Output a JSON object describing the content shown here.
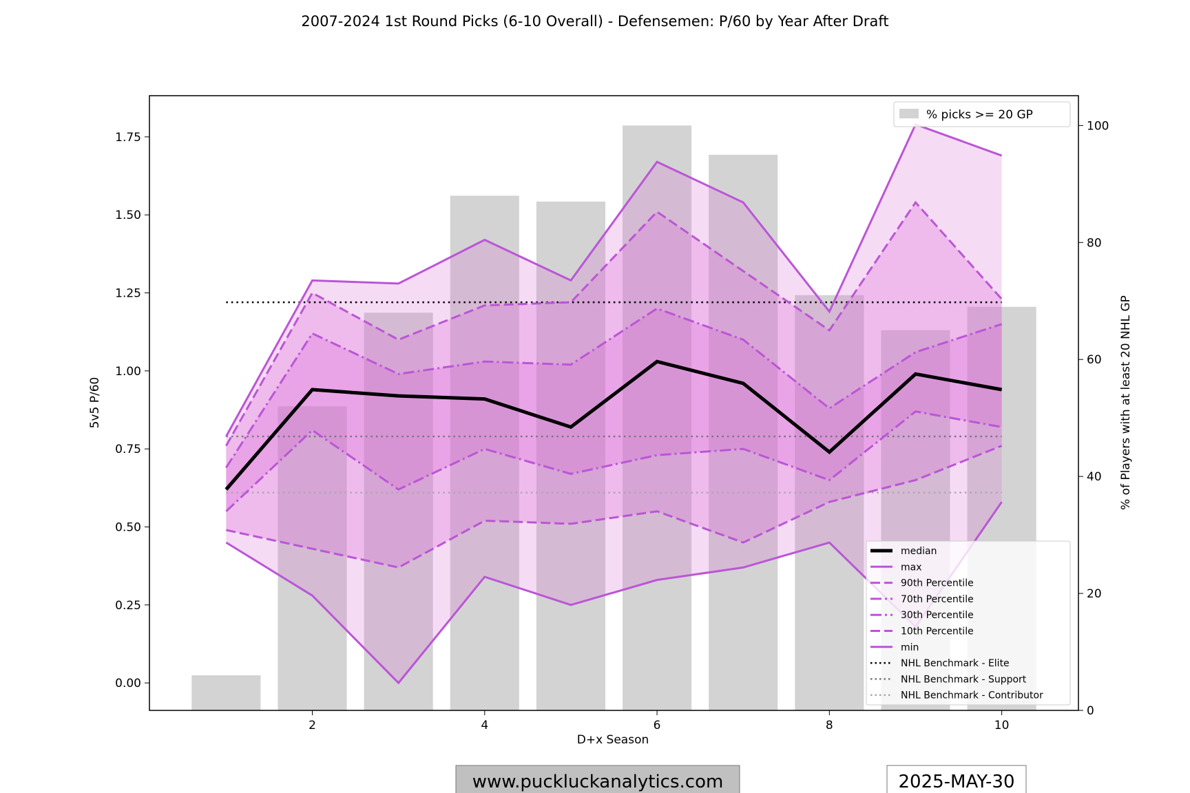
{
  "chart_data": {
    "type": "line",
    "title": "2007-2024 1st Round Picks (6-10 Overall) - Defensemen: P/60 by Year After Draft",
    "xlabel": "D+x Season",
    "ylabel": "5v5 P/60",
    "y2label": "% of Players with at least 20 NHL GP",
    "x": [
      1,
      2,
      3,
      4,
      5,
      6,
      7,
      8,
      9,
      10
    ],
    "xticks": [
      2,
      4,
      6,
      8,
      10
    ],
    "yticks": [
      0.0,
      0.25,
      0.5,
      0.75,
      1.0,
      1.25,
      1.5,
      1.75
    ],
    "y2ticks": [
      0,
      20,
      40,
      60,
      80,
      100
    ],
    "xlim": [
      0.11,
      10.89
    ],
    "ylim": [
      -0.088,
      1.882
    ],
    "y2lim": [
      0,
      105.1
    ],
    "bars": {
      "name": "% picks >= 20 GP",
      "values": [
        6,
        52,
        68,
        88,
        87,
        100,
        95,
        71,
        65,
        69
      ],
      "color": "#d3d3d3"
    },
    "series": [
      {
        "name": "median",
        "values": [
          0.62,
          0.94,
          0.92,
          0.91,
          0.82,
          1.03,
          0.96,
          0.74,
          0.99,
          0.94
        ],
        "color": "#000000",
        "style": "solid"
      },
      {
        "name": "max",
        "values": [
          0.79,
          1.29,
          1.28,
          1.42,
          1.29,
          1.67,
          1.54,
          1.19,
          1.79,
          1.69
        ],
        "color": "#bb55d6",
        "style": "solid"
      },
      {
        "name": "90th Percentile",
        "values": [
          0.76,
          1.25,
          1.1,
          1.21,
          1.22,
          1.51,
          1.32,
          1.13,
          1.54,
          1.23
        ],
        "color": "#bb55d6",
        "style": "dashed"
      },
      {
        "name": "70th Percentile",
        "values": [
          0.69,
          1.12,
          0.99,
          1.03,
          1.02,
          1.2,
          1.1,
          0.88,
          1.06,
          1.15
        ],
        "color": "#bb55d6",
        "style": "dashdot"
      },
      {
        "name": "30th Percentile",
        "values": [
          0.55,
          0.81,
          0.62,
          0.75,
          0.67,
          0.73,
          0.75,
          0.65,
          0.87,
          0.82
        ],
        "color": "#bb55d6",
        "style": "dashdot"
      },
      {
        "name": "10th Percentile",
        "values": [
          0.49,
          0.43,
          0.37,
          0.52,
          0.51,
          0.55,
          0.45,
          0.58,
          0.65,
          0.76
        ],
        "color": "#bb55d6",
        "style": "dashed"
      },
      {
        "name": "min",
        "values": [
          0.45,
          0.28,
          0.0,
          0.34,
          0.25,
          0.33,
          0.37,
          0.45,
          0.18,
          0.58
        ],
        "color": "#bb55d6",
        "style": "solid"
      }
    ],
    "benchmarks": [
      {
        "name": "NHL Benchmark - Elite",
        "value": 1.22,
        "color": "#000000"
      },
      {
        "name": "NHL Benchmark - Support",
        "value": 0.79,
        "color": "#777777"
      },
      {
        "name": "NHL Benchmark - Contributor",
        "value": 0.61,
        "color": "#aaaaaa"
      }
    ],
    "legend_placement": "lower-right",
    "bar_legend_placement": "upper-right",
    "grid": false
  },
  "footer": {
    "website": "www.puckluckanalytics.com",
    "date": "2025-MAY-30"
  }
}
